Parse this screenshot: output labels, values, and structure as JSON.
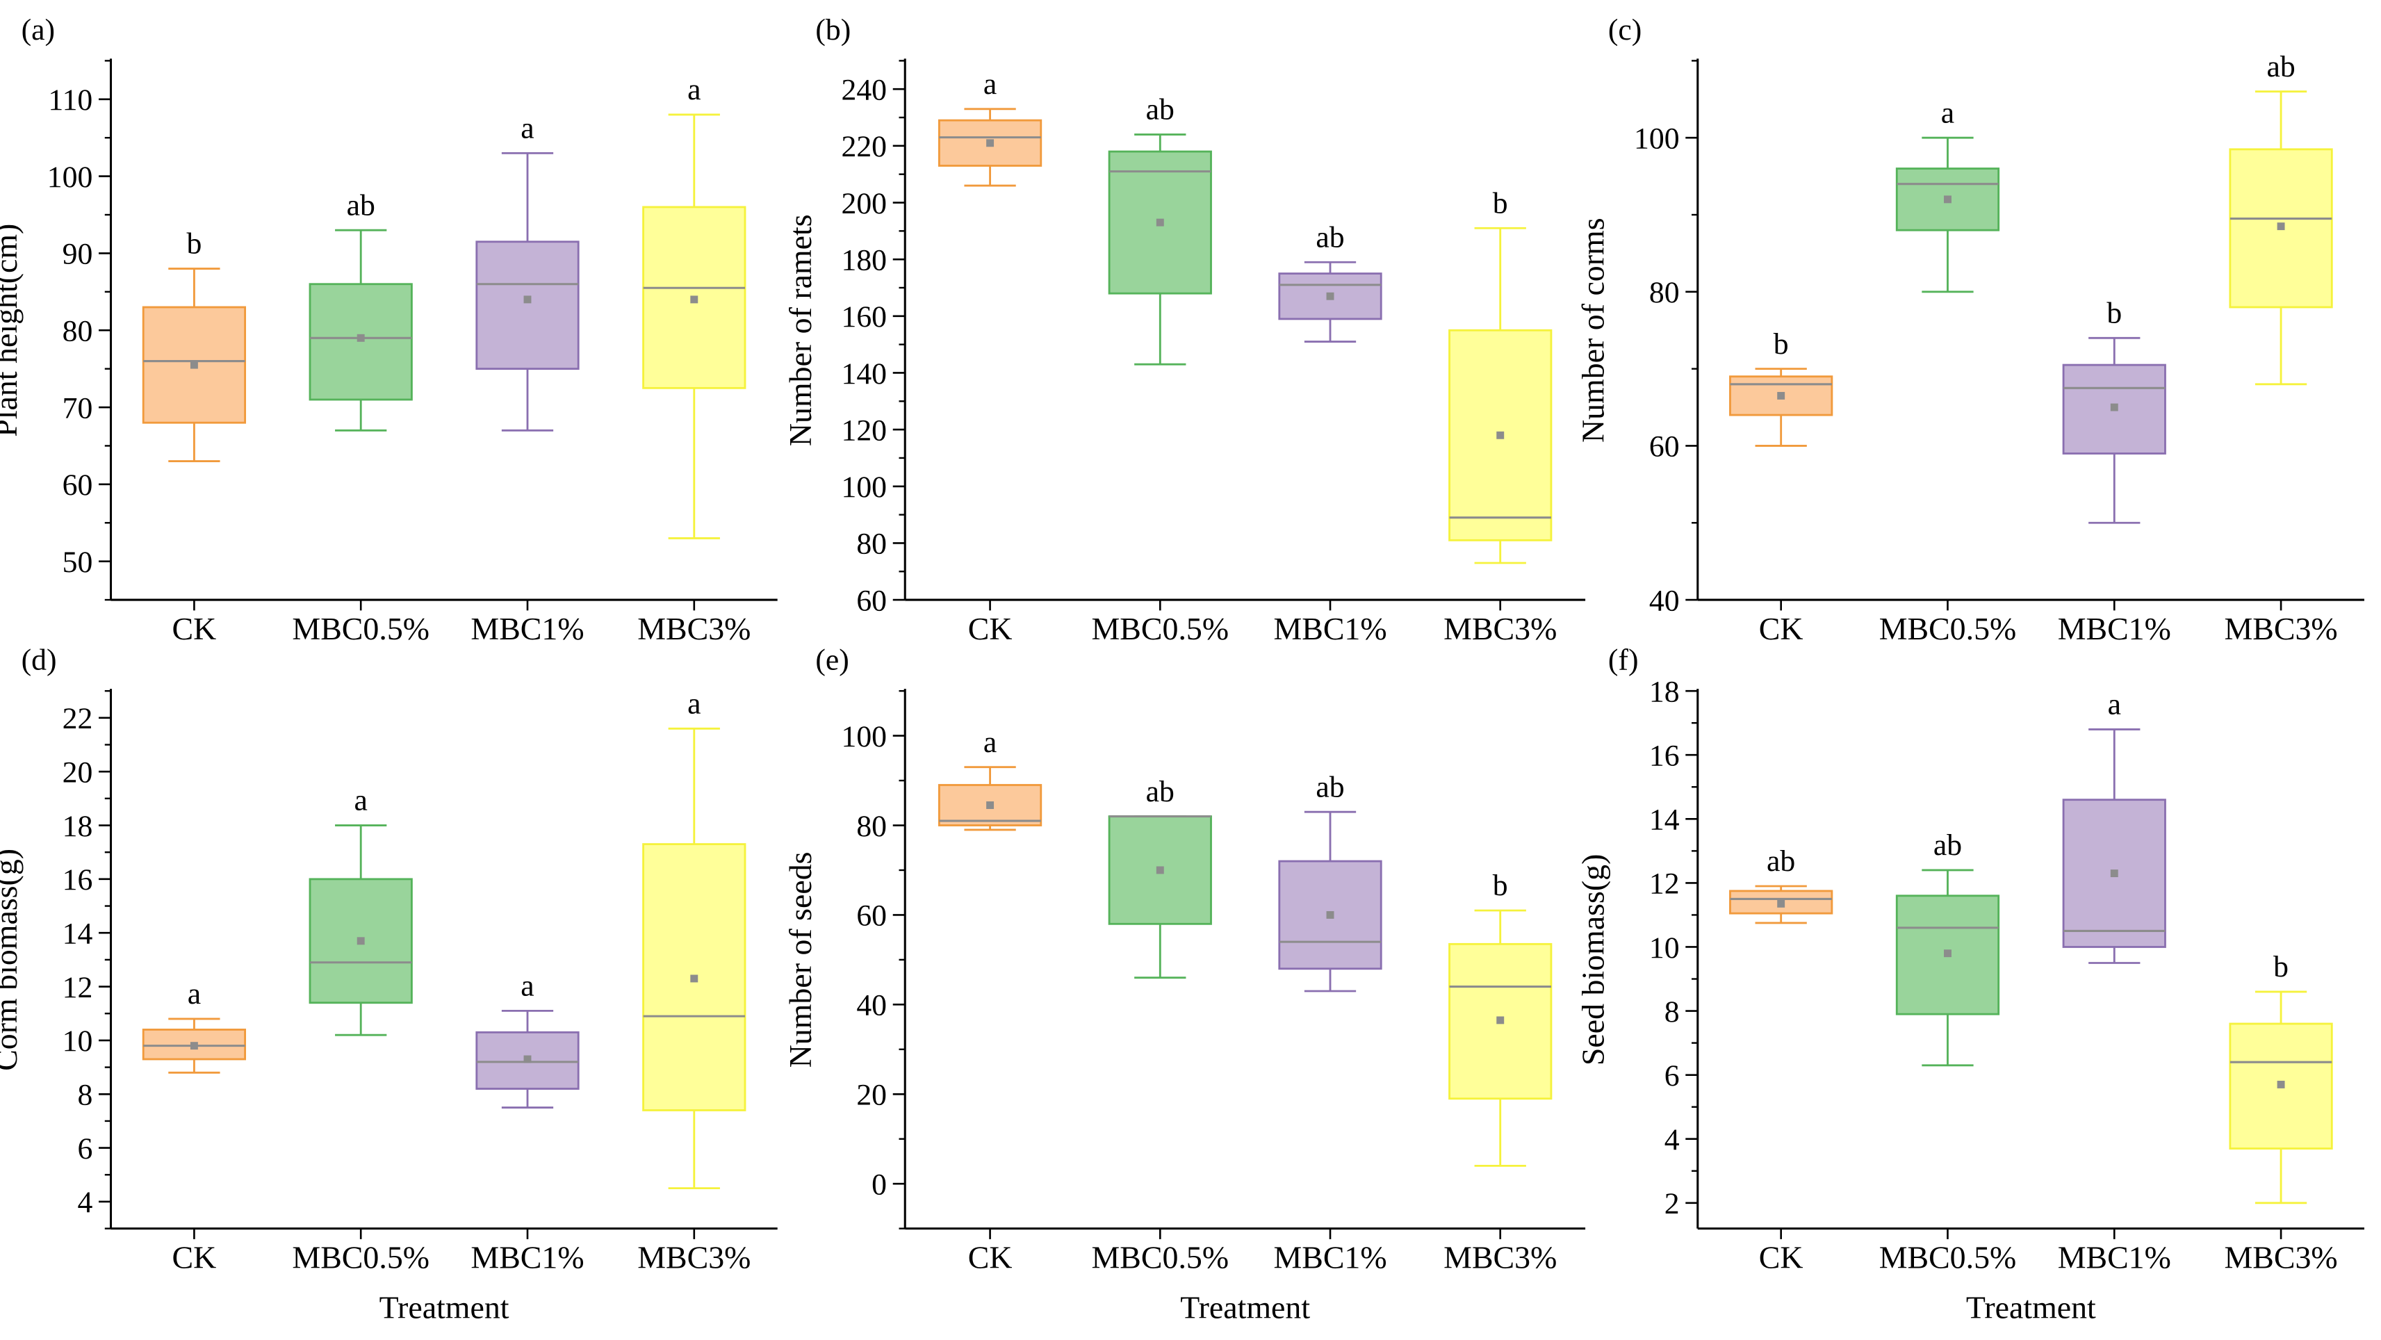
{
  "xlabel": "Treatment",
  "categories": [
    "CK",
    "MBC0.5%",
    "MBC1%",
    "MBC3%"
  ],
  "colors": {
    "CK": {
      "fill": "#fcc99b",
      "line": "#f19a3c"
    },
    "MBC0.5%": {
      "fill": "#99d49b",
      "line": "#55b35a"
    },
    "MBC1%": {
      "fill": "#c4b3d6",
      "line": "#8a6fb0"
    },
    "MBC3%": {
      "fill": "#ffff99",
      "line": "#f5f23c"
    },
    "median": "#8c8c8c",
    "mean": "#8c8c8c"
  },
  "chart_data": [
    {
      "panel": "(a)",
      "type": "box",
      "ylabel": "Plant height(cm)",
      "ylim": [
        45,
        115
      ],
      "yticks": [
        50,
        60,
        70,
        80,
        90,
        100,
        110
      ],
      "boxes": [
        {
          "category": "CK",
          "min": 63,
          "q1": 68,
          "median": 76,
          "q3": 83,
          "max": 88,
          "mean": 75.5,
          "letter": "b"
        },
        {
          "category": "MBC0.5%",
          "min": 67,
          "q1": 71,
          "median": 79,
          "q3": 86,
          "max": 93,
          "mean": 79,
          "letter": "ab"
        },
        {
          "category": "MBC1%",
          "min": 67,
          "q1": 75,
          "median": 86,
          "q3": 91.5,
          "max": 103,
          "mean": 84,
          "letter": "a"
        },
        {
          "category": "MBC3%",
          "min": 53,
          "q1": 72.5,
          "median": 85.5,
          "q3": 96,
          "max": 108,
          "mean": 84,
          "letter": "a"
        }
      ]
    },
    {
      "panel": "(b)",
      "type": "box",
      "ylabel": "Number of ramets",
      "ylim": [
        60,
        250
      ],
      "yticks": [
        60,
        80,
        100,
        120,
        140,
        160,
        180,
        200,
        220,
        240
      ],
      "boxes": [
        {
          "category": "CK",
          "min": 206,
          "q1": 213,
          "median": 223,
          "q3": 229,
          "max": 233,
          "mean": 221,
          "letter": "a"
        },
        {
          "category": "MBC0.5%",
          "min": 143,
          "q1": 168,
          "median": 211,
          "q3": 218,
          "max": 224,
          "mean": 193,
          "letter": "ab"
        },
        {
          "category": "MBC1%",
          "min": 151,
          "q1": 159,
          "median": 171,
          "q3": 175,
          "max": 179,
          "mean": 167,
          "letter": "ab"
        },
        {
          "category": "MBC3%",
          "min": 73,
          "q1": 81,
          "median": 89,
          "q3": 155,
          "max": 191,
          "mean": 118,
          "letter": "b"
        }
      ]
    },
    {
      "panel": "(c)",
      "type": "box",
      "ylabel": "Number of corms",
      "ylim": [
        40,
        110
      ],
      "yticks": [
        40,
        60,
        80,
        100
      ],
      "boxes": [
        {
          "category": "CK",
          "min": 60,
          "q1": 64,
          "median": 68,
          "q3": 69,
          "max": 70,
          "mean": 66.5,
          "letter": "b"
        },
        {
          "category": "MBC0.5%",
          "min": 80,
          "q1": 88,
          "median": 94,
          "q3": 96,
          "max": 100,
          "mean": 92,
          "letter": "a"
        },
        {
          "category": "MBC1%",
          "min": 50,
          "q1": 59,
          "median": 67.5,
          "q3": 70.5,
          "max": 74,
          "mean": 65,
          "letter": "b"
        },
        {
          "category": "MBC3%",
          "min": 68,
          "q1": 78,
          "median": 89.5,
          "q3": 98.5,
          "max": 106,
          "mean": 88.5,
          "letter": "ab"
        }
      ]
    },
    {
      "panel": "(d)",
      "type": "box",
      "ylabel": "Corm biomass(g)",
      "ylim": [
        3,
        23
      ],
      "yticks": [
        4,
        6,
        8,
        10,
        12,
        14,
        16,
        18,
        20,
        22
      ],
      "boxes": [
        {
          "category": "CK",
          "min": 8.8,
          "q1": 9.3,
          "median": 9.8,
          "q3": 10.4,
          "max": 10.8,
          "mean": 9.8,
          "letter": "a"
        },
        {
          "category": "MBC0.5%",
          "min": 10.2,
          "q1": 11.4,
          "median": 12.9,
          "q3": 16,
          "max": 18,
          "mean": 13.7,
          "letter": "a"
        },
        {
          "category": "MBC1%",
          "min": 7.5,
          "q1": 8.2,
          "median": 9.2,
          "q3": 10.3,
          "max": 11.1,
          "mean": 9.3,
          "letter": "a"
        },
        {
          "category": "MBC3%",
          "min": 4.5,
          "q1": 7.4,
          "median": 10.9,
          "q3": 17.3,
          "max": 21.6,
          "mean": 12.3,
          "letter": "a"
        }
      ]
    },
    {
      "panel": "(e)",
      "type": "box",
      "ylabel": "Number of seeds",
      "ylim": [
        -10,
        110
      ],
      "yticks": [
        0,
        20,
        40,
        60,
        80,
        100
      ],
      "boxes": [
        {
          "category": "CK",
          "min": 79,
          "q1": 80,
          "median": 81,
          "q3": 89,
          "max": 93,
          "mean": 84.5,
          "letter": "a"
        },
        {
          "category": "MBC0.5%",
          "min": 46,
          "q1": 58,
          "median": 82,
          "q3": 82,
          "max": 82,
          "mean": 70,
          "letter": "ab"
        },
        {
          "category": "MBC1%",
          "min": 43,
          "q1": 48,
          "median": 54,
          "q3": 72,
          "max": 83,
          "mean": 60,
          "letter": "ab"
        },
        {
          "category": "MBC3%",
          "min": 4,
          "q1": 19,
          "median": 44,
          "q3": 53.5,
          "max": 61,
          "mean": 36.5,
          "letter": "b"
        }
      ]
    },
    {
      "panel": "(f)",
      "type": "box",
      "ylabel": "Seed biomass(g)",
      "ylim": [
        1.2,
        18
      ],
      "yticks": [
        2,
        4,
        6,
        8,
        10,
        12,
        14,
        16,
        18
      ],
      "boxes": [
        {
          "category": "CK",
          "min": 10.75,
          "q1": 11.05,
          "median": 11.5,
          "q3": 11.75,
          "max": 11.9,
          "mean": 11.35,
          "letter": "ab"
        },
        {
          "category": "MBC0.5%",
          "min": 6.3,
          "q1": 7.9,
          "median": 10.6,
          "q3": 11.6,
          "max": 12.4,
          "mean": 9.8,
          "letter": "ab"
        },
        {
          "category": "MBC1%",
          "min": 9.5,
          "q1": 10,
          "median": 10.5,
          "q3": 14.6,
          "max": 16.8,
          "mean": 12.3,
          "letter": "a"
        },
        {
          "category": "MBC3%",
          "min": 2,
          "q1": 3.7,
          "median": 6.4,
          "q3": 7.6,
          "max": 8.6,
          "mean": 5.7,
          "letter": "b"
        }
      ]
    }
  ]
}
